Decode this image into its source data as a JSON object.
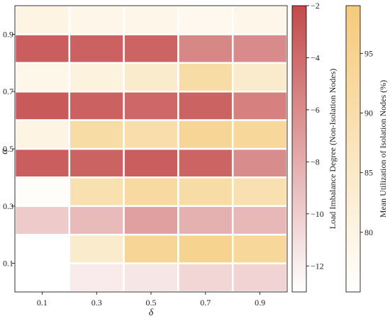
{
  "chart_data": {
    "type": "heatmap",
    "title": "",
    "xlabel": "δ",
    "ylabel": "α",
    "x_ticks": [
      "0.1",
      "0.3",
      "0.5",
      "0.7",
      "0.9"
    ],
    "y_ticks": [
      "0.1",
      "0.3",
      "0.5",
      "0.7",
      "0.9"
    ],
    "x_values": [
      0.1,
      0.3,
      0.5,
      0.7,
      0.9
    ],
    "alpha_values": [
      0.1,
      0.3,
      0.5,
      0.7,
      0.9
    ],
    "series": [
      {
        "name": "Load Imbalance Degree (Non-Isolation Nodes)",
        "row": "lower",
        "colormap": [
          "#ffffff",
          "#c44a4a"
        ],
        "vmin": -13,
        "vmax": -2,
        "values": [
          [
            null,
            -11.8,
            -11.5,
            -10.5,
            -10.3
          ],
          [
            -9.8,
            -8.8,
            -7.2,
            -8.2,
            -8.7
          ],
          [
            -3.2,
            -3.5,
            -3.2,
            -3.6,
            -6.0
          ],
          [
            -3.0,
            -3.4,
            -3.8,
            -3.5,
            -5.3
          ],
          [
            -3.2,
            -3.4,
            -3.6,
            -5.7,
            -5.9
          ]
        ]
      },
      {
        "name": "Mean Utilization of Isolation Nodes (%)",
        "row": "upper",
        "colormap": [
          "#ffffff",
          "#f5ca7a"
        ],
        "vmin": 75,
        "vmax": 99,
        "values": [
          [
            null,
            84,
            94,
            95,
            93
          ],
          [
            76,
            89,
            92,
            91,
            89
          ],
          [
            80,
            91,
            90,
            94,
            93
          ],
          [
            79,
            81,
            84,
            91,
            84
          ],
          [
            80,
            79,
            79,
            78,
            79
          ]
        ]
      }
    ],
    "colorbars": [
      {
        "label": "Load Imbalance Degree (Non-Isolation Nodes)",
        "ticks": [
          -2,
          -4,
          -6,
          -8,
          -10,
          -12
        ],
        "tick_labels": [
          "−2",
          "−4",
          "−6",
          "−8",
          "−10",
          "−12"
        ],
        "range": [
          -13,
          -2
        ],
        "colors": [
          "#ffffff",
          "#c44a4a"
        ]
      },
      {
        "label": "Mean Utilization of Isolation Nodes (%)",
        "ticks": [
          80,
          85,
          90,
          95
        ],
        "tick_labels": [
          "80",
          "85",
          "90",
          "95"
        ],
        "range": [
          75,
          99
        ],
        "colors": [
          "#ffffff",
          "#f5ca7a"
        ]
      }
    ]
  }
}
